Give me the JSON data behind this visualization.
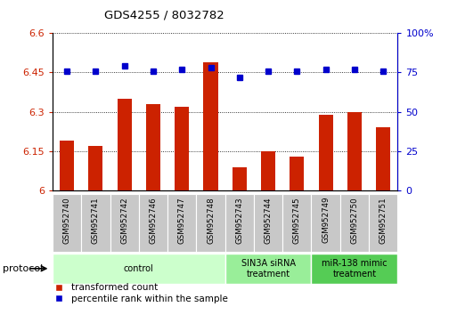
{
  "title": "GDS4255 / 8032782",
  "samples": [
    "GSM952740",
    "GSM952741",
    "GSM952742",
    "GSM952746",
    "GSM952747",
    "GSM952748",
    "GSM952743",
    "GSM952744",
    "GSM952745",
    "GSM952749",
    "GSM952750",
    "GSM952751"
  ],
  "bar_values": [
    6.19,
    6.17,
    6.35,
    6.33,
    6.32,
    6.49,
    6.09,
    6.15,
    6.13,
    6.29,
    6.3,
    6.24
  ],
  "dot_values": [
    76,
    76,
    79,
    76,
    77,
    78,
    72,
    76,
    76,
    77,
    77,
    76
  ],
  "bar_color": "#cc2200",
  "dot_color": "#0000cc",
  "ylim_left": [
    6.0,
    6.6
  ],
  "ylim_right": [
    0,
    100
  ],
  "yticks_left": [
    6.0,
    6.15,
    6.3,
    6.45,
    6.6
  ],
  "yticks_right": [
    0,
    25,
    50,
    75,
    100
  ],
  "ytick_labels_left": [
    "6",
    "6.15",
    "6.3",
    "6.45",
    "6.6"
  ],
  "ytick_labels_right": [
    "0",
    "25",
    "50",
    "75",
    "100%"
  ],
  "groups": [
    {
      "label": "control",
      "start": 0,
      "end": 6,
      "color": "#ccffcc"
    },
    {
      "label": "SIN3A siRNA\ntreatment",
      "start": 6,
      "end": 9,
      "color": "#99ee99"
    },
    {
      "label": "miR-138 mimic\ntreatment",
      "start": 9,
      "end": 12,
      "color": "#55cc55"
    }
  ],
  "protocol_label": "protocol",
  "legend_bar_label": "transformed count",
  "legend_dot_label": "percentile rank within the sample",
  "bg_color": "#ffffff",
  "plot_bg_color": "#ffffff",
  "tick_label_color_left": "#cc2200",
  "tick_label_color_right": "#0000cc",
  "xlabel_box_color": "#c8c8c8",
  "bar_width": 0.5
}
